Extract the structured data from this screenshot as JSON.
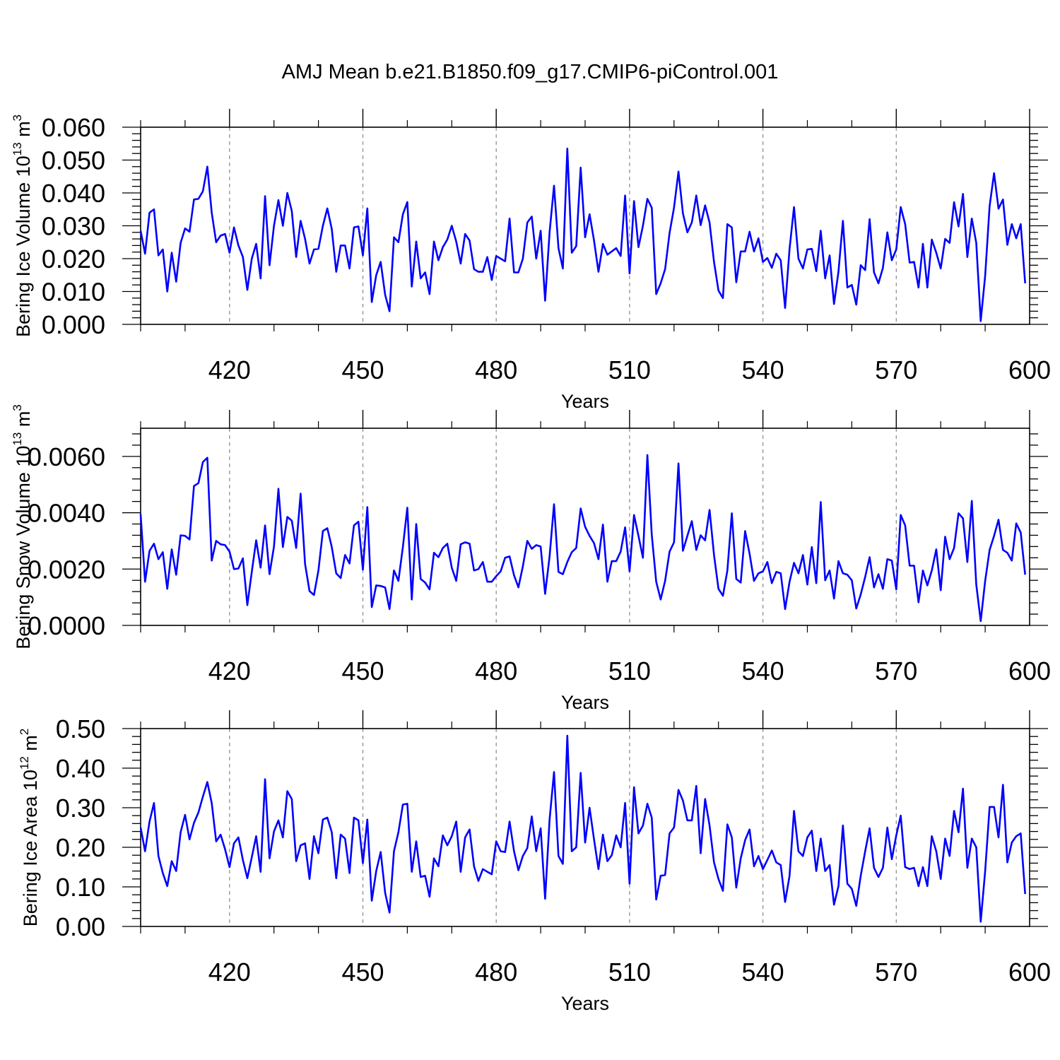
{
  "title": "AMJ Mean b.e21.B1850.f09_g17.CMIP6-piControl.001",
  "colors": {
    "line": "#0000ff",
    "axis": "#000000",
    "grid": "#888888"
  },
  "chart_data": [
    {
      "type": "line",
      "title": "",
      "xlabel": "Years",
      "ylabel": {
        "text": "Bering Ice Volume 10",
        "sup": "13",
        "unit": " m",
        "unit_sup": "3"
      },
      "xlim": [
        400,
        600
      ],
      "ylim": [
        0,
        0.06
      ],
      "xticks": [
        420,
        450,
        480,
        510,
        540,
        570,
        600
      ],
      "yticks": [
        "0.000",
        "0.010",
        "0.020",
        "0.030",
        "0.040",
        "0.050",
        "0.060"
      ],
      "grid": "vertical dashed at major x ticks",
      "series": [
        {
          "x_start": 400,
          "x_step": 1,
          "values": [
            0.0285,
            0.0215,
            0.034,
            0.035,
            0.021,
            0.0228,
            0.01,
            0.0218,
            0.013,
            0.0248,
            0.0292,
            0.0282,
            0.038,
            0.0382,
            0.0405,
            0.048,
            0.034,
            0.025,
            0.027,
            0.0275,
            0.0218,
            0.0295,
            0.024,
            0.0205,
            0.0105,
            0.02,
            0.0245,
            0.014,
            0.039,
            0.018,
            0.03,
            0.0378,
            0.03,
            0.04,
            0.0345,
            0.0205,
            0.0315,
            0.026,
            0.0185,
            0.0228,
            0.023,
            0.03,
            0.0353,
            0.029,
            0.016,
            0.024,
            0.024,
            0.017,
            0.0295,
            0.0298,
            0.021,
            0.0353,
            0.0068,
            0.015,
            0.019,
            0.009,
            0.004,
            0.0265,
            0.025,
            0.0335,
            0.0372,
            0.0115,
            0.0252,
            0.014,
            0.0158,
            0.0092,
            0.0252,
            0.0195,
            0.0235,
            0.0258,
            0.03,
            0.0252,
            0.0185,
            0.0275,
            0.0255,
            0.0168,
            0.016,
            0.016,
            0.0205,
            0.0135,
            0.0208,
            0.02,
            0.0192,
            0.0322,
            0.0158,
            0.0158,
            0.02,
            0.031,
            0.0328,
            0.02,
            0.0285,
            0.0072,
            0.028,
            0.0422,
            0.0232,
            0.017,
            0.0535,
            0.0218,
            0.0238,
            0.0477,
            0.0265,
            0.0335,
            0.0255,
            0.016,
            0.0245,
            0.0212,
            0.0222,
            0.0232,
            0.0208,
            0.0392,
            0.0155,
            0.0375,
            0.0235,
            0.03,
            0.0382,
            0.0355,
            0.0092,
            0.0125,
            0.0168,
            0.0278,
            0.0355,
            0.0465,
            0.0338,
            0.028,
            0.031,
            0.0392,
            0.0302,
            0.0362,
            0.031,
            0.019,
            0.0103,
            0.008,
            0.0305,
            0.0295,
            0.0128,
            0.0222,
            0.0222,
            0.0282,
            0.0222,
            0.0262,
            0.019,
            0.0202,
            0.0172,
            0.0215,
            0.0195,
            0.005,
            0.023,
            0.0357,
            0.02,
            0.017,
            0.0228,
            0.023,
            0.0162,
            0.0285,
            0.014,
            0.021,
            0.0062,
            0.016,
            0.0315,
            0.0112,
            0.012,
            0.006,
            0.018,
            0.0165,
            0.032,
            0.0158,
            0.0125,
            0.0172,
            0.028,
            0.0195,
            0.0228,
            0.0357,
            0.0305,
            0.0188,
            0.019,
            0.0112,
            0.0245,
            0.0112,
            0.0258,
            0.0218,
            0.017,
            0.026,
            0.0248,
            0.0372,
            0.0298,
            0.0397,
            0.0205,
            0.0322,
            0.0248,
            0.001,
            0.0148,
            0.036,
            0.046,
            0.0352,
            0.038,
            0.0242,
            0.0305,
            0.0262,
            0.0305,
            0.0125
          ]
        }
      ]
    },
    {
      "type": "line",
      "title": "",
      "xlabel": "Years",
      "ylabel": {
        "text": "Bering Snow Volume 10",
        "sup": "13",
        "unit": " m",
        "unit_sup": "3"
      },
      "xlim": [
        400,
        600
      ],
      "ylim": [
        0,
        0.007
      ],
      "xticks": [
        420,
        450,
        480,
        510,
        540,
        570,
        600
      ],
      "yticks": [
        "0.0000",
        "0.0020",
        "0.0040",
        "0.0060"
      ],
      "grid": "vertical dashed at major x ticks",
      "series": [
        {
          "x_start": 400,
          "x_step": 1,
          "values": [
            0.00395,
            0.00155,
            0.00265,
            0.0029,
            0.00235,
            0.0026,
            0.0013,
            0.0027,
            0.0018,
            0.0032,
            0.00318,
            0.00305,
            0.00495,
            0.00505,
            0.0058,
            0.00595,
            0.0023,
            0.003,
            0.00288,
            0.00285,
            0.00262,
            0.002,
            0.00202,
            0.00238,
            0.00072,
            0.0019,
            0.00302,
            0.00205,
            0.00355,
            0.00182,
            0.0028,
            0.00485,
            0.00278,
            0.00385,
            0.00372,
            0.00275,
            0.00468,
            0.00218,
            0.00122,
            0.00108,
            0.00195,
            0.00335,
            0.00345,
            0.00278,
            0.00185,
            0.00168,
            0.0025,
            0.0022,
            0.00355,
            0.00368,
            0.00198,
            0.0042,
            0.00065,
            0.00142,
            0.0014,
            0.00135,
            0.00058,
            0.00195,
            0.00158,
            0.00278,
            0.00418,
            0.00092,
            0.0036,
            0.00165,
            0.00152,
            0.00128,
            0.00258,
            0.00242,
            0.00275,
            0.0029,
            0.00205,
            0.00158,
            0.00288,
            0.00295,
            0.0029,
            0.00195,
            0.002,
            0.00225,
            0.00155,
            0.00155,
            0.00175,
            0.00192,
            0.0024,
            0.00245,
            0.00178,
            0.00135,
            0.0021,
            0.003,
            0.00272,
            0.00285,
            0.0028,
            0.00112,
            0.00245,
            0.0043,
            0.0019,
            0.00182,
            0.00225,
            0.0026,
            0.00275,
            0.00415,
            0.0035,
            0.00318,
            0.00292,
            0.00235,
            0.00358,
            0.00155,
            0.00228,
            0.00228,
            0.00262,
            0.00348,
            0.00192,
            0.00392,
            0.00318,
            0.0024,
            0.00605,
            0.00322,
            0.00155,
            0.00092,
            0.00158,
            0.00262,
            0.00295,
            0.00575,
            0.00265,
            0.00318,
            0.0037,
            0.00268,
            0.0032,
            0.00302,
            0.0041,
            0.0025,
            0.0013,
            0.00105,
            0.00195,
            0.00398,
            0.00165,
            0.00152,
            0.00335,
            0.00255,
            0.00158,
            0.00185,
            0.00192,
            0.00225,
            0.0015,
            0.0019,
            0.00185,
            0.00058,
            0.00155,
            0.00222,
            0.00185,
            0.0025,
            0.00145,
            0.00278,
            0.0015,
            0.00438,
            0.0016,
            0.00195,
            0.00095,
            0.00228,
            0.00185,
            0.0018,
            0.0016,
            0.0006,
            0.0011,
            0.00172,
            0.00242,
            0.00135,
            0.00182,
            0.0013,
            0.00235,
            0.0023,
            0.00128,
            0.00392,
            0.00355,
            0.00212,
            0.00212,
            0.00082,
            0.00195,
            0.00142,
            0.00195,
            0.0027,
            0.00125,
            0.00315,
            0.00235,
            0.00275,
            0.00398,
            0.0038,
            0.00225,
            0.00442,
            0.00145,
            0.00015,
            0.00158,
            0.00268,
            0.00318,
            0.00375,
            0.00268,
            0.00258,
            0.0023,
            0.00362,
            0.0033,
            0.0018
          ]
        }
      ]
    },
    {
      "type": "line",
      "title": "",
      "xlabel": "Years",
      "ylabel": {
        "text": "Bering Ice Area 10",
        "sup": "12",
        "unit": " m",
        "unit_sup": "2"
      },
      "xlim": [
        400,
        600
      ],
      "ylim": [
        0,
        0.5
      ],
      "xticks": [
        420,
        450,
        480,
        510,
        540,
        570,
        600
      ],
      "yticks": [
        "0.00",
        "0.10",
        "0.20",
        "0.30",
        "0.40",
        "0.50"
      ],
      "grid": "vertical dashed at major x ticks",
      "series": [
        {
          "x_start": 400,
          "x_step": 1,
          "values": [
            0.25,
            0.19,
            0.265,
            0.312,
            0.178,
            0.135,
            0.102,
            0.165,
            0.14,
            0.238,
            0.282,
            0.22,
            0.262,
            0.288,
            0.328,
            0.365,
            0.312,
            0.215,
            0.232,
            0.195,
            0.15,
            0.21,
            0.225,
            0.168,
            0.122,
            0.175,
            0.228,
            0.138,
            0.372,
            0.172,
            0.24,
            0.268,
            0.225,
            0.342,
            0.322,
            0.165,
            0.205,
            0.21,
            0.12,
            0.228,
            0.185,
            0.27,
            0.275,
            0.238,
            0.122,
            0.232,
            0.222,
            0.135,
            0.275,
            0.268,
            0.16,
            0.27,
            0.065,
            0.14,
            0.188,
            0.085,
            0.035,
            0.19,
            0.238,
            0.308,
            0.31,
            0.138,
            0.215,
            0.125,
            0.128,
            0.075,
            0.172,
            0.152,
            0.23,
            0.205,
            0.228,
            0.265,
            0.138,
            0.225,
            0.245,
            0.152,
            0.115,
            0.145,
            0.138,
            0.132,
            0.215,
            0.19,
            0.188,
            0.265,
            0.19,
            0.142,
            0.178,
            0.198,
            0.278,
            0.19,
            0.248,
            0.07,
            0.27,
            0.39,
            0.178,
            0.158,
            0.482,
            0.19,
            0.2,
            0.388,
            0.212,
            0.3,
            0.22,
            0.145,
            0.232,
            0.165,
            0.18,
            0.23,
            0.2,
            0.312,
            0.108,
            0.352,
            0.235,
            0.255,
            0.31,
            0.275,
            0.068,
            0.128,
            0.13,
            0.235,
            0.25,
            0.345,
            0.318,
            0.268,
            0.268,
            0.355,
            0.185,
            0.322,
            0.255,
            0.162,
            0.12,
            0.09,
            0.258,
            0.225,
            0.098,
            0.172,
            0.218,
            0.245,
            0.152,
            0.178,
            0.145,
            0.168,
            0.192,
            0.162,
            0.155,
            0.062,
            0.128,
            0.292,
            0.19,
            0.178,
            0.225,
            0.242,
            0.14,
            0.222,
            0.14,
            0.155,
            0.055,
            0.102,
            0.255,
            0.108,
            0.095,
            0.052,
            0.128,
            0.19,
            0.248,
            0.148,
            0.125,
            0.148,
            0.25,
            0.17,
            0.23,
            0.28,
            0.15,
            0.145,
            0.148,
            0.102,
            0.15,
            0.102,
            0.228,
            0.19,
            0.12,
            0.222,
            0.178,
            0.292,
            0.238,
            0.348,
            0.148,
            0.222,
            0.2,
            0.012,
            0.14,
            0.302,
            0.302,
            0.225,
            0.358,
            0.162,
            0.212,
            0.228,
            0.235,
            0.082
          ]
        }
      ]
    }
  ]
}
